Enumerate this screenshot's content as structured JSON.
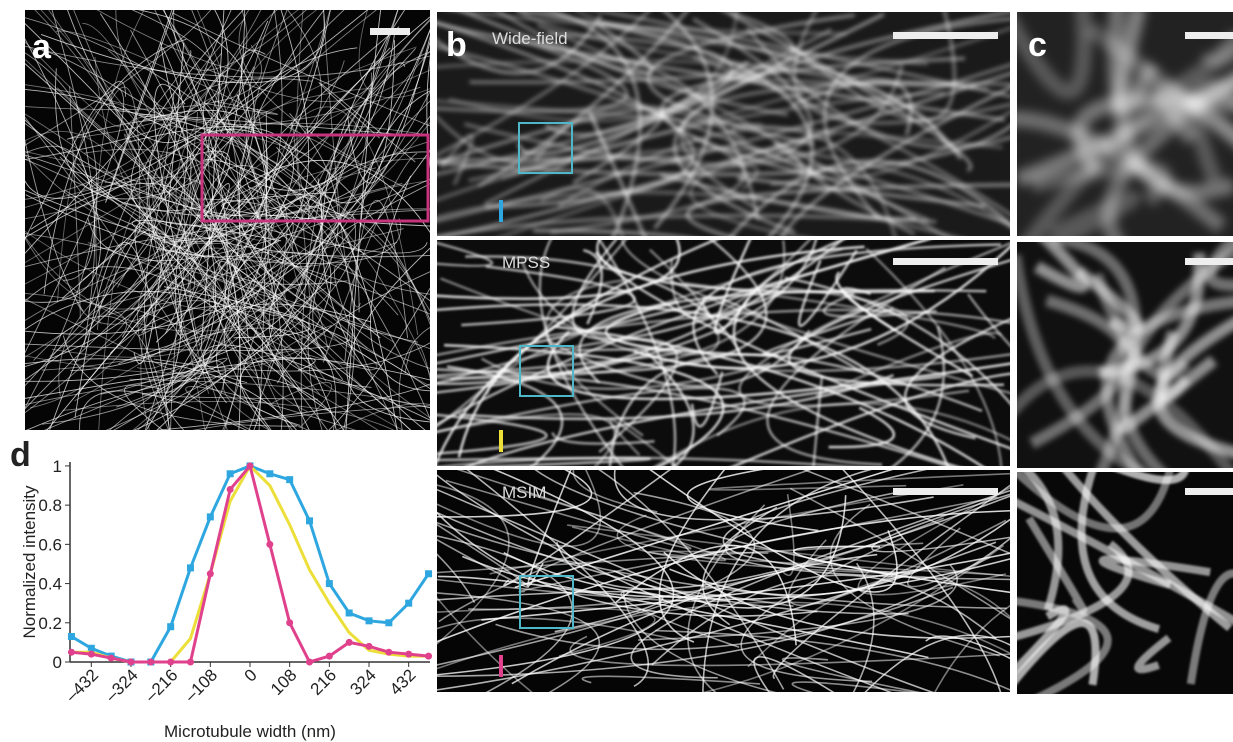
{
  "panels": {
    "a": "a",
    "b": "b",
    "c": "c",
    "d": "d"
  },
  "image_labels": [
    "Wide-field",
    "MPSS",
    "MSIM"
  ],
  "chart_data": {
    "type": "line",
    "ylabel": "Normalized intensity",
    "xlabel": "Microtubule width (nm)",
    "x": [
      -486,
      -432,
      -378,
      -324,
      -270,
      -216,
      -162,
      -108,
      -54,
      0,
      54,
      108,
      162,
      216,
      270,
      324,
      378,
      432,
      486
    ],
    "series": [
      {
        "name": "Wide-field",
        "color": "#2ea7e0",
        "marker": "square",
        "values": [
          0.13,
          0.07,
          0.03,
          0.0,
          0.0,
          0.18,
          0.48,
          0.74,
          0.96,
          1.0,
          0.96,
          0.93,
          0.72,
          0.4,
          0.25,
          0.21,
          0.2,
          0.3,
          0.45
        ]
      },
      {
        "name": "MPSS",
        "color": "#ecdf3a",
        "marker": "none",
        "values": [
          0.05,
          0.05,
          0.02,
          0.0,
          0.0,
          0.0,
          0.12,
          0.45,
          0.82,
          1.0,
          0.9,
          0.7,
          0.47,
          0.3,
          0.15,
          0.06,
          0.04,
          0.03,
          0.03
        ]
      },
      {
        "name": "MSIM",
        "color": "#e0418c",
        "marker": "circle",
        "values": [
          0.05,
          0.04,
          0.02,
          0.0,
          0.0,
          0.0,
          0.0,
          0.45,
          0.88,
          1.0,
          0.6,
          0.2,
          0.0,
          0.03,
          0.1,
          0.08,
          0.05,
          0.04,
          0.03
        ]
      }
    ],
    "xlim": [
      -490,
      490
    ],
    "ylim": [
      0,
      1.02
    ],
    "xticks": [
      {
        "value": -432,
        "label": "–432"
      },
      {
        "value": -324,
        "label": "–324"
      },
      {
        "value": -216,
        "label": "–216"
      },
      {
        "value": -108,
        "label": "–108"
      },
      0,
      108,
      216,
      324,
      432
    ],
    "yticks": [
      0,
      0.2,
      0.4,
      0.6,
      0.8,
      1
    ]
  }
}
